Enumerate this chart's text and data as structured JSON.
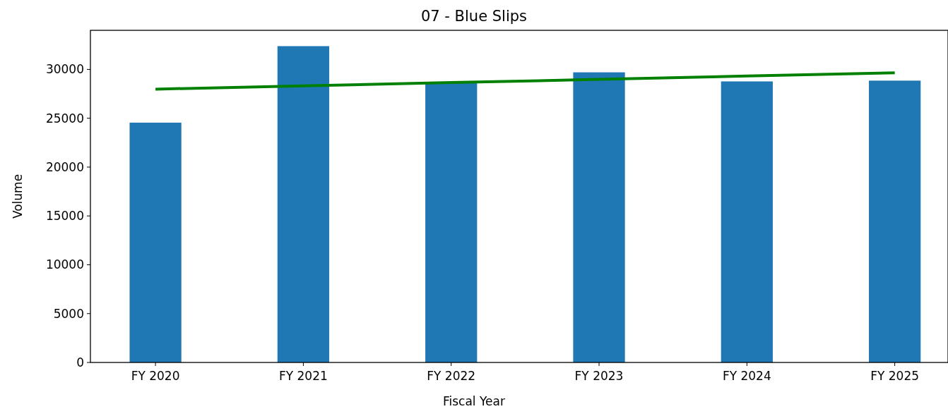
{
  "chart_data": {
    "type": "bar",
    "title": "07 - Blue Slips",
    "xlabel": "Fiscal Year",
    "ylabel": "Volume",
    "categories": [
      "FY 2020",
      "FY 2021",
      "FY 2022",
      "FY 2023",
      "FY 2024",
      "FY 2025"
    ],
    "series": [
      {
        "color": "#1f77b4",
        "values": [
          24550,
          32380,
          28700,
          29700,
          28770,
          28850
        ]
      },
      {
        "type": "line",
        "color": "#008000",
        "x": [
          "FY 2020",
          "FY 2021",
          "FY 2022",
          "FY 2023",
          "FY 2024",
          "FY 2025"
        ],
        "values": [
          27980,
          28310,
          28650,
          28980,
          29320,
          29650
        ]
      }
    ],
    "ylim": [
      0,
      34000
    ],
    "yticks": [
      0,
      5000,
      10000,
      15000,
      20000,
      25000,
      30000
    ],
    "grid": false
  }
}
